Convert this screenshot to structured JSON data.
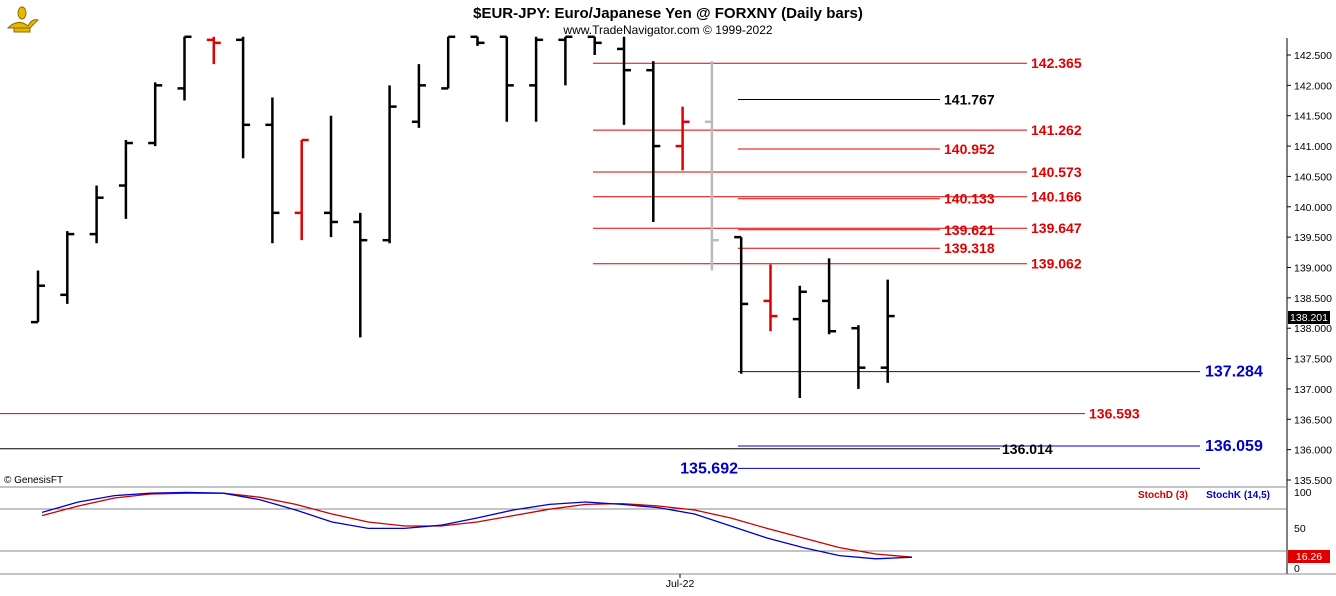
{
  "header": {
    "title": "$EUR-JPY:  Euro/Japanese Yen @ FORXNY  (Daily bars)",
    "subtitle": "www.TradeNavigator.com © 1999-2022",
    "logo_icon": "genie-lamp-icon",
    "copyright_tag": "© GenesisFT"
  },
  "colors": {
    "bar": "#000000",
    "bar_highlight": "#e00000",
    "bar_muted": "#bbbbbb",
    "level_red": "#e00000",
    "level_blue": "#0000cc",
    "level_black": "#000000",
    "stoch_d": "#cc0000",
    "stoch_k": "#0000cc",
    "grid": "#888888"
  },
  "price_axis": {
    "ticks": [
      "142.500",
      "142.000",
      "141.500",
      "141.000",
      "140.500",
      "140.000",
      "139.500",
      "139.000",
      "138.500",
      "138.000",
      "137.500",
      "137.000",
      "136.500",
      "136.000",
      "135.500"
    ],
    "last_price": "138.201"
  },
  "date_axis": {
    "label": "Jul-22"
  },
  "stoch_panel": {
    "ticks": [
      "100",
      "50",
      "0"
    ],
    "legend_d": "StochD (3)",
    "legend_k": "StochK (14,5)",
    "last_value": "16.26"
  },
  "chart_data": {
    "type": "ohlc",
    "title": "$EUR-JPY:  Euro/Japanese Yen @ FORXNY  (Daily bars)",
    "ylim": [
      135.3,
      142.85
    ],
    "bars": [
      {
        "h": 138.95,
        "l": 138.1,
        "o": 138.1,
        "c": 138.7,
        "s": "n"
      },
      {
        "h": 139.6,
        "l": 138.4,
        "o": 138.55,
        "c": 139.55,
        "s": "n"
      },
      {
        "h": 140.35,
        "l": 139.4,
        "o": 139.55,
        "c": 140.15,
        "s": "n"
      },
      {
        "h": 141.1,
        "l": 139.8,
        "o": 140.35,
        "c": 141.05,
        "s": "n"
      },
      {
        "h": 142.05,
        "l": 141.0,
        "o": 141.05,
        "c": 142.0,
        "s": "n"
      },
      {
        "h": 142.8,
        "l": 141.75,
        "o": 141.95,
        "c": 142.8,
        "s": "n"
      },
      {
        "h": 142.8,
        "l": 142.35,
        "o": 142.75,
        "c": 142.7,
        "s": "r"
      },
      {
        "h": 142.8,
        "l": 140.8,
        "o": 142.75,
        "c": 141.35,
        "s": "n"
      },
      {
        "h": 141.8,
        "l": 139.4,
        "o": 141.35,
        "c": 139.9,
        "s": "n"
      },
      {
        "h": 141.1,
        "l": 139.45,
        "o": 139.9,
        "c": 141.1,
        "s": "r"
      },
      {
        "h": 141.5,
        "l": 139.5,
        "o": 139.9,
        "c": 139.75,
        "s": "n"
      },
      {
        "h": 139.9,
        "l": 137.85,
        "o": 139.75,
        "c": 139.45,
        "s": "n"
      },
      {
        "h": 142.0,
        "l": 139.4,
        "o": 139.45,
        "c": 141.65,
        "s": "n"
      },
      {
        "h": 142.35,
        "l": 141.3,
        "o": 141.4,
        "c": 142.0,
        "s": "n"
      },
      {
        "h": 142.8,
        "l": 141.95,
        "o": 141.95,
        "c": 142.8,
        "s": "n"
      },
      {
        "h": 142.8,
        "l": 142.65,
        "o": 142.8,
        "c": 142.7,
        "s": "n"
      },
      {
        "h": 142.8,
        "l": 141.4,
        "o": 142.8,
        "c": 142.0,
        "s": "n"
      },
      {
        "h": 142.8,
        "l": 141.4,
        "o": 142.0,
        "c": 142.75,
        "s": "n"
      },
      {
        "h": 142.8,
        "l": 142.0,
        "o": 142.75,
        "c": 142.8,
        "s": "n"
      },
      {
        "h": 142.8,
        "l": 142.5,
        "o": 142.8,
        "c": 142.7,
        "s": "n"
      },
      {
        "h": 142.8,
        "l": 141.35,
        "o": 142.6,
        "c": 142.25,
        "s": "n"
      },
      {
        "h": 142.4,
        "l": 139.75,
        "o": 142.25,
        "c": 141.0,
        "s": "n"
      },
      {
        "h": 141.65,
        "l": 140.6,
        "o": 141.0,
        "c": 141.4,
        "s": "r"
      },
      {
        "h": 142.4,
        "l": 138.95,
        "o": 141.4,
        "c": 139.45,
        "s": "g"
      },
      {
        "h": 139.5,
        "l": 137.25,
        "o": 139.5,
        "c": 138.4,
        "s": "n"
      },
      {
        "h": 139.05,
        "l": 137.95,
        "o": 138.45,
        "c": 138.2,
        "s": "r"
      },
      {
        "h": 138.7,
        "l": 136.85,
        "o": 138.15,
        "c": 138.6,
        "s": "n"
      },
      {
        "h": 139.15,
        "l": 137.9,
        "o": 138.45,
        "c": 137.95,
        "s": "n"
      },
      {
        "h": 138.05,
        "l": 137.0,
        "o": 138.0,
        "c": 137.35,
        "s": "n"
      },
      {
        "h": 138.8,
        "l": 137.1,
        "o": 137.35,
        "c": 138.2,
        "s": "n"
      }
    ],
    "levels": [
      {
        "value": 142.365,
        "label": "142.365",
        "color": "red"
      },
      {
        "value": 141.767,
        "label": "141.767",
        "color": "black"
      },
      {
        "value": 141.262,
        "label": "141.262",
        "color": "red"
      },
      {
        "value": 140.952,
        "label": "140.952",
        "color": "red"
      },
      {
        "value": 140.573,
        "label": "140.573",
        "color": "red"
      },
      {
        "value": 140.166,
        "label": "140.166",
        "color": "red"
      },
      {
        "value": 140.133,
        "label": "140.133",
        "color": "red"
      },
      {
        "value": 139.647,
        "label": "139.647",
        "color": "red"
      },
      {
        "value": 139.621,
        "label": "139.621",
        "color": "red"
      },
      {
        "value": 139.318,
        "label": "139.318",
        "color": "red"
      },
      {
        "value": 139.062,
        "label": "139.062",
        "color": "red"
      },
      {
        "value": 137.284,
        "label": "137.284",
        "color": "blue"
      },
      {
        "value": 136.593,
        "label": "136.593",
        "color": "red"
      },
      {
        "value": 136.059,
        "label": "136.059",
        "color": "blue"
      },
      {
        "value": 136.014,
        "label": "136.014",
        "color": "black"
      },
      {
        "value": 135.692,
        "label": "135.692",
        "color": "blue"
      }
    ],
    "stoch_k": [
      72,
      85,
      93,
      96,
      97,
      96,
      88,
      75,
      60,
      52,
      52,
      56,
      65,
      75,
      82,
      85,
      82,
      78,
      70,
      55,
      40,
      28,
      18,
      14,
      16
    ],
    "stoch_d": [
      68,
      80,
      90,
      95,
      96,
      96,
      91,
      82,
      70,
      60,
      55,
      55,
      60,
      68,
      76,
      82,
      83,
      80,
      75,
      65,
      52,
      40,
      28,
      20,
      16
    ]
  }
}
